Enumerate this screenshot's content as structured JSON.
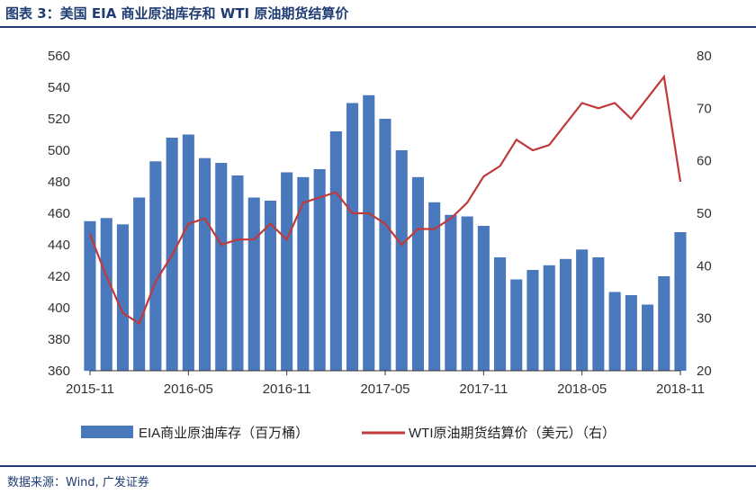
{
  "header": {
    "title": "图表 3：美国 EIA 商业原油库存和 WTI 原油期货结算价"
  },
  "footer": {
    "source": "数据来源：Wind, 广发证券"
  },
  "colors": {
    "bar": "#4a78bc",
    "line": "#c0393b",
    "axis": "#333333",
    "title": "#1f3d73"
  },
  "chart_data": {
    "type": "bar+line",
    "x_tick_labels": [
      "2015-11",
      "2016-05",
      "2016-11",
      "2017-05",
      "2017-11",
      "2018-05",
      "2018-11"
    ],
    "left_axis": {
      "ylim": [
        360,
        560
      ],
      "ticks": [
        "560",
        "540",
        "520",
        "500",
        "480",
        "460",
        "440",
        "420",
        "400",
        "380",
        "360"
      ]
    },
    "right_axis": {
      "ylim": [
        20,
        80
      ],
      "ticks": [
        "80",
        "70",
        "60",
        "50",
        "40",
        "30",
        "20"
      ]
    },
    "legend": {
      "placement": "bottom",
      "entries": [
        "EIA商业原油库存（百万桶）",
        "WTI原油期货结算价（美元）（右）"
      ]
    },
    "series": [
      {
        "name": "EIA商业原油库存（百万桶）",
        "type": "bar",
        "axis": "left",
        "x": [
          "2015-11",
          "2015-12",
          "2016-01",
          "2016-02",
          "2016-03",
          "2016-04",
          "2016-05",
          "2016-06",
          "2016-07",
          "2016-08",
          "2016-09",
          "2016-10",
          "2016-11",
          "2016-12",
          "2017-01",
          "2017-02",
          "2017-03",
          "2017-04",
          "2017-05",
          "2017-06",
          "2017-07",
          "2017-08",
          "2017-09",
          "2017-10",
          "2017-11",
          "2017-12",
          "2018-01",
          "2018-02",
          "2018-03",
          "2018-04",
          "2018-05",
          "2018-06",
          "2018-07",
          "2018-08",
          "2018-09",
          "2018-10",
          "2018-11"
        ],
        "values": [
          455,
          457,
          453,
          470,
          493,
          508,
          510,
          495,
          492,
          484,
          470,
          468,
          486,
          483,
          488,
          512,
          530,
          535,
          520,
          500,
          483,
          467,
          459,
          458,
          452,
          432,
          418,
          424,
          427,
          431,
          437,
          432,
          410,
          408,
          402,
          420,
          448
        ]
      },
      {
        "name": "WTI原油期货结算价（美元）（右）",
        "type": "line",
        "axis": "right",
        "x": [
          "2015-11",
          "2015-12",
          "2016-01",
          "2016-02",
          "2016-03",
          "2016-04",
          "2016-05",
          "2016-06",
          "2016-07",
          "2016-08",
          "2016-09",
          "2016-10",
          "2016-11",
          "2016-12",
          "2017-01",
          "2017-02",
          "2017-03",
          "2017-04",
          "2017-05",
          "2017-06",
          "2017-07",
          "2017-08",
          "2017-09",
          "2017-10",
          "2017-11",
          "2017-12",
          "2018-01",
          "2018-02",
          "2018-03",
          "2018-04",
          "2018-05",
          "2018-06",
          "2018-07",
          "2018-08",
          "2018-09",
          "2018-10",
          "2018-11"
        ],
        "values": [
          46,
          38,
          31,
          29,
          37,
          42,
          48,
          49,
          44,
          45,
          45,
          48,
          45,
          52,
          53,
          54,
          50,
          50,
          48,
          44,
          47,
          47,
          49,
          52,
          57,
          59,
          64,
          62,
          63,
          67,
          71,
          70,
          71,
          68,
          72,
          76,
          56
        ]
      }
    ]
  }
}
